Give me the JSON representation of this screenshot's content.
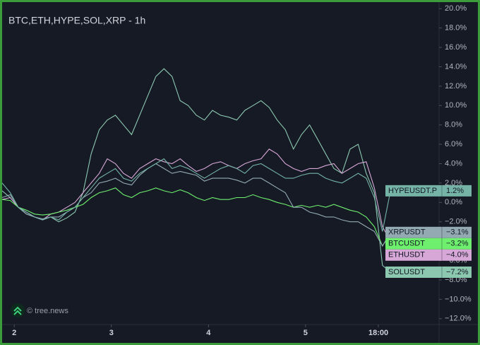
{
  "chart_data": {
    "type": "line",
    "title": "BTC,ETH,HYPE,SOL,XRP - 1h",
    "watermark": "© tree.news",
    "x": [
      0,
      2,
      4,
      6,
      8,
      10,
      12,
      14,
      16,
      18,
      20,
      22,
      24,
      26,
      28,
      30,
      32,
      34,
      36,
      38,
      40,
      42,
      44,
      46,
      48,
      50,
      52,
      54,
      56,
      58,
      60,
      62,
      64,
      66,
      68,
      70,
      72,
      74,
      76,
      78,
      80,
      82,
      84,
      86,
      88,
      90,
      92,
      94,
      96
    ],
    "xlim": [
      0,
      108
    ],
    "xticks": [
      {
        "value": 3,
        "label": "2"
      },
      {
        "value": 27,
        "label": "3"
      },
      {
        "value": 51,
        "label": "4"
      },
      {
        "value": 75,
        "label": "5"
      },
      {
        "value": 93,
        "label": "18:00"
      }
    ],
    "ylim": [
      -12.6,
      20.6
    ],
    "yticks": [
      {
        "value": 20,
        "label": "20.0%"
      },
      {
        "value": 18,
        "label": "18.0%"
      },
      {
        "value": 16,
        "label": "16.0%"
      },
      {
        "value": 14,
        "label": "14.0%"
      },
      {
        "value": 12,
        "label": "12.0%"
      },
      {
        "value": 10,
        "label": "10.0%"
      },
      {
        "value": 8,
        "label": "8.0%"
      },
      {
        "value": 6,
        "label": "6.0%"
      },
      {
        "value": 4,
        "label": "4.0%"
      },
      {
        "value": 2,
        "label": "2.0%"
      },
      {
        "value": 0,
        "label": "0.0%"
      },
      {
        "value": -2,
        "label": "−2.0%"
      },
      {
        "value": -4,
        "label": "−4.0%"
      },
      {
        "value": -6,
        "label": "−6.0%"
      },
      {
        "value": -8,
        "label": "−8.0%"
      },
      {
        "value": -10,
        "label": "−10.0%"
      },
      {
        "value": -12,
        "label": "−12.0%"
      }
    ],
    "series": [
      {
        "name": "HYPEUSDT.P",
        "color": "#74b3a6",
        "values": [
          2,
          1,
          -0.5,
          -1,
          -1.5,
          -1.8,
          -1.5,
          -1.8,
          -1,
          -0.5,
          0.5,
          1.5,
          2.5,
          3,
          3.5,
          2.5,
          2.2,
          3,
          3.5,
          4,
          4.5,
          3.5,
          3.8,
          3.5,
          3,
          2.5,
          3,
          3.5,
          3.8,
          3.5,
          3,
          3.8,
          4,
          3.5,
          3,
          2.5,
          2.5,
          2.8,
          3,
          3,
          2.5,
          2.2,
          2,
          2.5,
          3,
          2.5,
          0.5,
          -3,
          1.2
        ],
        "value_labels": [
          null,
          null,
          null,
          null,
          null,
          null,
          null,
          null,
          null,
          null,
          null,
          null,
          null,
          null,
          null,
          null,
          null,
          null,
          null,
          null,
          null,
          null,
          null,
          null,
          null,
          null,
          null,
          null,
          null,
          null,
          null,
          null,
          null,
          null,
          null,
          null,
          null,
          null,
          null,
          null,
          null,
          null,
          null,
          null,
          null,
          null,
          null,
          null,
          "1.2%"
        ]
      },
      {
        "name": "XRPUSDT",
        "color": "#93aab3",
        "values": [
          0.5,
          0.8,
          -0.5,
          -1.2,
          -1.5,
          -1.7,
          -1.5,
          -1.5,
          -1,
          -0.5,
          0.5,
          1,
          2,
          2.2,
          2.5,
          2,
          1.8,
          2.8,
          3.5,
          4,
          3.5,
          3,
          3.2,
          3,
          2.8,
          2.2,
          2.5,
          2.5,
          2.5,
          2.3,
          2,
          2.5,
          2.5,
          2,
          1.5,
          1,
          -0.5,
          -0.5,
          -1,
          -1.2,
          -1.5,
          -1.5,
          -1.8,
          -2,
          -2,
          -2.5,
          -3,
          -4.5,
          -3.1
        ],
        "value_labels": [
          null,
          null,
          null,
          null,
          null,
          null,
          null,
          null,
          null,
          null,
          null,
          null,
          null,
          null,
          null,
          null,
          null,
          null,
          null,
          null,
          null,
          null,
          null,
          null,
          null,
          null,
          null,
          null,
          null,
          null,
          null,
          null,
          null,
          null,
          null,
          null,
          null,
          null,
          null,
          null,
          null,
          null,
          null,
          null,
          null,
          null,
          null,
          null,
          "−3.1%"
        ]
      },
      {
        "name": "BTCUSDT",
        "color": "#6ef06e",
        "values": [
          0.3,
          0.2,
          -0.5,
          -0.8,
          -1.2,
          -1.3,
          -1.2,
          -1,
          -0.8,
          -0.5,
          -0.2,
          0.5,
          1,
          1.2,
          1.5,
          0.8,
          0.5,
          1,
          1.2,
          1.5,
          1.2,
          1,
          1.3,
          1,
          0.5,
          0.2,
          0.5,
          0.3,
          0.3,
          0.5,
          0.5,
          0.8,
          0.5,
          0.3,
          0,
          -0.2,
          -0.5,
          -0.3,
          -0.5,
          -0.3,
          -0.5,
          -0.2,
          -0.5,
          -0.8,
          -1,
          -1.5,
          -2.5,
          -4.5,
          -3.2
        ],
        "value_labels": [
          null,
          null,
          null,
          null,
          null,
          null,
          null,
          null,
          null,
          null,
          null,
          null,
          null,
          null,
          null,
          null,
          null,
          null,
          null,
          null,
          null,
          null,
          null,
          null,
          null,
          null,
          null,
          null,
          null,
          null,
          null,
          null,
          null,
          null,
          null,
          null,
          null,
          null,
          null,
          null,
          null,
          null,
          null,
          null,
          null,
          null,
          null,
          null,
          "−3.2%"
        ]
      },
      {
        "name": "ETHUSDT",
        "color": "#d7a8d7",
        "values": [
          0.3,
          0.5,
          -0.5,
          -1,
          -1.5,
          -1.8,
          -1.2,
          -1,
          -0.5,
          0,
          1,
          2,
          3,
          4.5,
          4,
          3,
          2.5,
          3.5,
          4,
          4.5,
          4.2,
          4,
          4.5,
          3.8,
          3.2,
          3.5,
          4,
          4.2,
          3.8,
          3.5,
          4,
          4.3,
          4.5,
          5.5,
          5,
          4,
          3.5,
          3.2,
          3.5,
          3.5,
          3.8,
          4,
          3,
          3.5,
          4,
          4.2,
          1.5,
          -2.5,
          -4
        ],
        "value_labels": [
          null,
          null,
          null,
          null,
          null,
          null,
          null,
          null,
          null,
          null,
          null,
          null,
          null,
          null,
          null,
          null,
          null,
          null,
          null,
          null,
          null,
          null,
          null,
          null,
          null,
          null,
          null,
          null,
          null,
          null,
          null,
          null,
          null,
          null,
          null,
          null,
          null,
          null,
          null,
          null,
          null,
          null,
          null,
          null,
          null,
          null,
          null,
          null,
          "−4.0%"
        ]
      },
      {
        "name": "SOLUSDT",
        "color": "#8cc7b0",
        "values": [
          1.2,
          0.5,
          -0.5,
          -1.2,
          -1.5,
          -1.8,
          -1.5,
          -2,
          -1.6,
          -1,
          1,
          5,
          7.5,
          8.5,
          9,
          8,
          7,
          9,
          11,
          13,
          13.8,
          13,
          10.5,
          10,
          9,
          8.5,
          9.5,
          9,
          8.8,
          8.5,
          9.5,
          10,
          10.5,
          9.8,
          8.5,
          7.5,
          5.5,
          7,
          8,
          6.5,
          5,
          3.5,
          3,
          5.5,
          6,
          3,
          1,
          -6.5,
          -7.2
        ],
        "value_labels": [
          null,
          null,
          null,
          null,
          null,
          null,
          null,
          null,
          null,
          null,
          null,
          null,
          null,
          null,
          null,
          null,
          null,
          null,
          null,
          null,
          null,
          null,
          null,
          null,
          null,
          null,
          null,
          null,
          null,
          null,
          null,
          null,
          null,
          null,
          null,
          null,
          null,
          null,
          null,
          null,
          null,
          null,
          null,
          null,
          null,
          null,
          null,
          null,
          "−7.2%"
        ]
      }
    ]
  }
}
